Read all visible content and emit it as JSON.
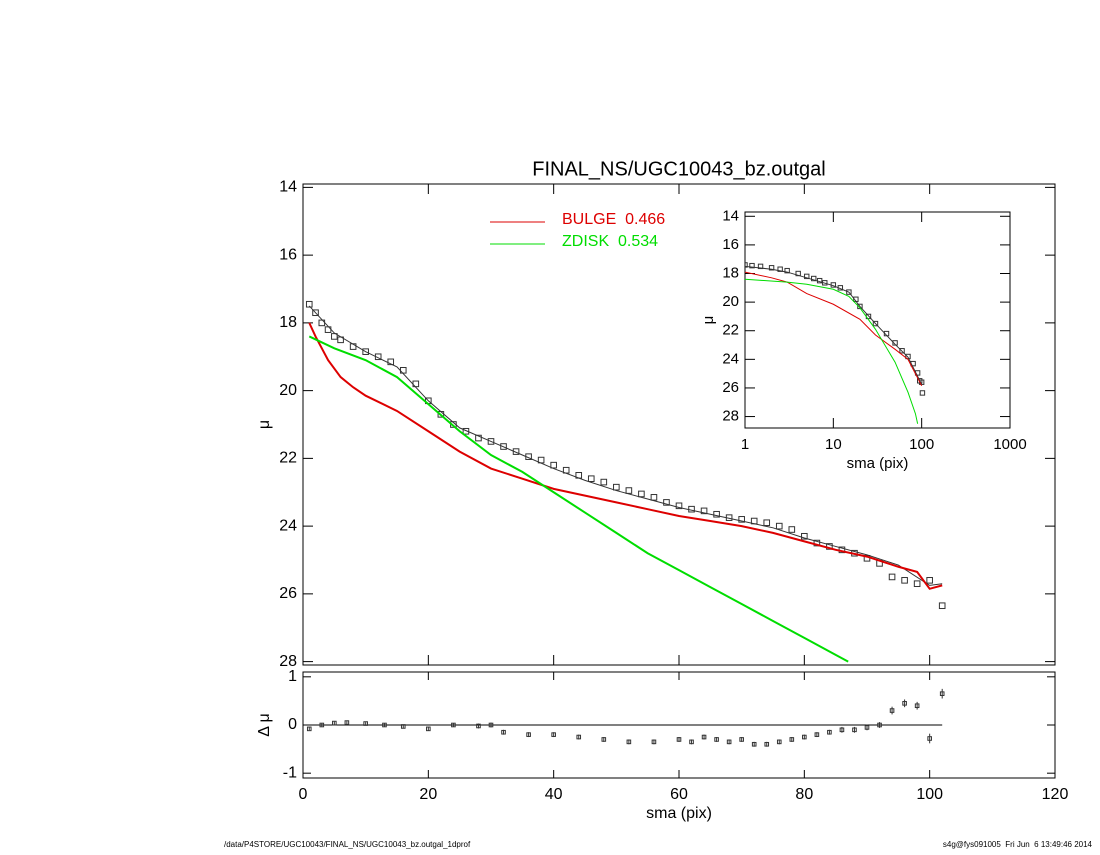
{
  "chart_data": [
    {
      "type": "line",
      "title": "FINAL_NS/UGC10043_bz.outgal",
      "ylabel": "μ",
      "xlim": [
        0,
        120
      ],
      "xticks": [
        0,
        20,
        40,
        60,
        80,
        100,
        120
      ],
      "ylim": [
        13.9,
        28.1
      ],
      "yticks": [
        14,
        16,
        18,
        20,
        22,
        24,
        26,
        28
      ],
      "invert_y": true,
      "series": [
        {
          "marker": "square",
          "color": "#333333",
          "x": [
            1,
            2,
            3,
            4,
            5,
            6,
            8,
            10,
            12,
            14,
            16,
            18,
            20,
            22,
            24,
            26,
            28,
            30,
            32,
            34,
            36,
            38,
            40,
            42,
            44,
            46,
            48,
            50,
            52,
            54,
            56,
            58,
            60,
            62,
            64,
            66,
            68,
            70,
            72,
            74,
            76,
            78,
            80,
            82,
            84,
            86,
            88,
            90,
            92,
            94,
            96,
            98,
            100,
            102
          ],
          "values": [
            17.45,
            17.7,
            18.0,
            18.2,
            18.4,
            18.5,
            18.7,
            18.85,
            19.0,
            19.15,
            19.4,
            19.8,
            20.3,
            20.7,
            21.0,
            21.2,
            21.4,
            21.5,
            21.65,
            21.8,
            21.95,
            22.05,
            22.2,
            22.35,
            22.5,
            22.6,
            22.7,
            22.85,
            22.95,
            23.05,
            23.15,
            23.3,
            23.4,
            23.5,
            23.55,
            23.65,
            23.75,
            23.8,
            23.85,
            23.9,
            24.0,
            24.1,
            24.3,
            24.5,
            24.6,
            24.7,
            24.8,
            24.95,
            25.1,
            25.5,
            25.6,
            25.7,
            25.6,
            26.35
          ]
        },
        {
          "color": "#333333",
          "width": 1,
          "x": [
            1,
            5,
            10,
            15,
            20,
            25,
            30,
            35,
            40,
            45,
            50,
            55,
            60,
            65,
            70,
            75,
            80,
            85,
            90,
            95,
            100,
            102
          ],
          "values": [
            17.5,
            18.3,
            18.85,
            19.3,
            20.3,
            21.1,
            21.5,
            21.9,
            22.3,
            22.65,
            22.95,
            23.2,
            23.45,
            23.65,
            23.85,
            24.05,
            24.35,
            24.6,
            24.85,
            25.15,
            25.75,
            25.7
          ]
        },
        {
          "name": "BULGE  0.466",
          "color": "#dd0000",
          "width": 2,
          "x": [
            1,
            2,
            4,
            6,
            8,
            10,
            15,
            20,
            25,
            30,
            35,
            40,
            45,
            50,
            55,
            60,
            65,
            70,
            75,
            80,
            85,
            90,
            95,
            98,
            100,
            102
          ],
          "values": [
            18.0,
            18.4,
            19.1,
            19.6,
            19.9,
            20.15,
            20.6,
            21.2,
            21.8,
            22.3,
            22.6,
            22.9,
            23.1,
            23.3,
            23.5,
            23.7,
            23.85,
            24.0,
            24.2,
            24.45,
            24.7,
            24.9,
            25.2,
            25.35,
            25.85,
            25.75
          ]
        },
        {
          "name": "ZDISK  0.534",
          "color": "#00dd00",
          "width": 2,
          "x": [
            1,
            5,
            10,
            15,
            20,
            25,
            30,
            35,
            40,
            45,
            50,
            55,
            60,
            65,
            70,
            75,
            80,
            85,
            87
          ],
          "values": [
            18.4,
            18.75,
            19.1,
            19.6,
            20.4,
            21.2,
            21.9,
            22.4,
            23.0,
            23.6,
            24.2,
            24.8,
            25.3,
            25.8,
            26.3,
            26.8,
            27.3,
            27.8,
            28.0
          ]
        }
      ]
    },
    {
      "type": "errorbar",
      "xlabel": "sma (pix)",
      "ylabel": "Δ μ",
      "xlim": [
        0,
        120
      ],
      "xticks": [
        0,
        20,
        40,
        60,
        80,
        100,
        120
      ],
      "ylim": [
        -1.1,
        1.1
      ],
      "yticks": [
        -1,
        0,
        1
      ],
      "reference_line": {
        "y": 0,
        "x": [
          0,
          102
        ]
      },
      "color": "#333333",
      "x": [
        1,
        3,
        5,
        7,
        10,
        13,
        16,
        20,
        24,
        28,
        30,
        32,
        36,
        40,
        44,
        48,
        52,
        56,
        60,
        62,
        64,
        66,
        68,
        70,
        72,
        74,
        76,
        78,
        80,
        82,
        84,
        86,
        88,
        90,
        92,
        94,
        96,
        98,
        100,
        102
      ],
      "values": [
        -0.08,
        0.0,
        0.04,
        0.05,
        0.03,
        0.0,
        -0.03,
        -0.08,
        0.0,
        -0.02,
        0.0,
        -0.15,
        -0.2,
        -0.2,
        -0.25,
        -0.3,
        -0.35,
        -0.35,
        -0.3,
        -0.35,
        -0.25,
        -0.3,
        -0.35,
        -0.3,
        -0.4,
        -0.4,
        -0.35,
        -0.3,
        -0.25,
        -0.2,
        -0.15,
        -0.1,
        -0.1,
        -0.05,
        0.0,
        0.3,
        0.45,
        0.4,
        -0.28,
        0.65
      ],
      "errors": [
        0.03,
        0.03,
        0.03,
        0.03,
        0.03,
        0.03,
        0.04,
        0.04,
        0.04,
        0.05,
        0.05,
        0.05,
        0.05,
        0.05,
        0.05,
        0.05,
        0.05,
        0.05,
        0.05,
        0.05,
        0.05,
        0.05,
        0.05,
        0.05,
        0.05,
        0.05,
        0.05,
        0.05,
        0.05,
        0.05,
        0.05,
        0.06,
        0.06,
        0.06,
        0.06,
        0.08,
        0.08,
        0.08,
        0.1,
        0.1
      ]
    },
    {
      "type": "line",
      "xlabel": "sma (pix)",
      "ylabel": "μ",
      "xscale": "log",
      "xlim": [
        1,
        1000
      ],
      "xticks": [
        1,
        10,
        100,
        1000
      ],
      "ylim": [
        13.7,
        28.8
      ],
      "yticks": [
        14,
        16,
        18,
        20,
        22,
        24,
        26,
        28
      ],
      "invert_y": true,
      "series": [
        {
          "marker": "square",
          "color": "#333333",
          "x": [
            1,
            1.2,
            1.5,
            2,
            2.5,
            3,
            4,
            5,
            6,
            7,
            8,
            10,
            12,
            15,
            18,
            20,
            25,
            30,
            40,
            50,
            60,
            70,
            80,
            90,
            95,
            100,
            102
          ],
          "values": [
            17.4,
            17.45,
            17.5,
            17.6,
            17.7,
            17.8,
            18.0,
            18.2,
            18.35,
            18.5,
            18.65,
            18.8,
            19.0,
            19.3,
            19.8,
            20.3,
            21.0,
            21.5,
            22.2,
            22.85,
            23.4,
            23.8,
            24.3,
            24.95,
            25.5,
            25.6,
            26.35
          ]
        },
        {
          "color": "#333333",
          "width": 1,
          "x": [
            1,
            2,
            3,
            5,
            10,
            15,
            20,
            30,
            50,
            70,
            100
          ],
          "values": [
            17.5,
            17.7,
            17.9,
            18.3,
            18.85,
            19.3,
            20.3,
            21.5,
            22.95,
            23.85,
            25.75
          ]
        },
        {
          "color": "#dd0000",
          "width": 1,
          "x": [
            1,
            2,
            3,
            5,
            10,
            20,
            30,
            50,
            70,
            100
          ],
          "values": [
            17.9,
            18.3,
            18.6,
            19.4,
            20.15,
            21.2,
            22.3,
            23.3,
            24.0,
            25.85
          ]
        },
        {
          "color": "#00dd00",
          "width": 1,
          "x": [
            1,
            3,
            5,
            10,
            15,
            20,
            30,
            50,
            70,
            85,
            90
          ],
          "values": [
            18.4,
            18.6,
            18.75,
            19.1,
            19.6,
            20.4,
            21.9,
            24.2,
            26.3,
            27.8,
            28.5
          ]
        }
      ]
    }
  ],
  "footer": {
    "left": "/data/P4STORE/UGC10043/FINAL_NS/UGC10043_bz.outgal_1dprof",
    "right": "s4g@fys091005  Fri Jun  6 13:49:46 2014"
  }
}
